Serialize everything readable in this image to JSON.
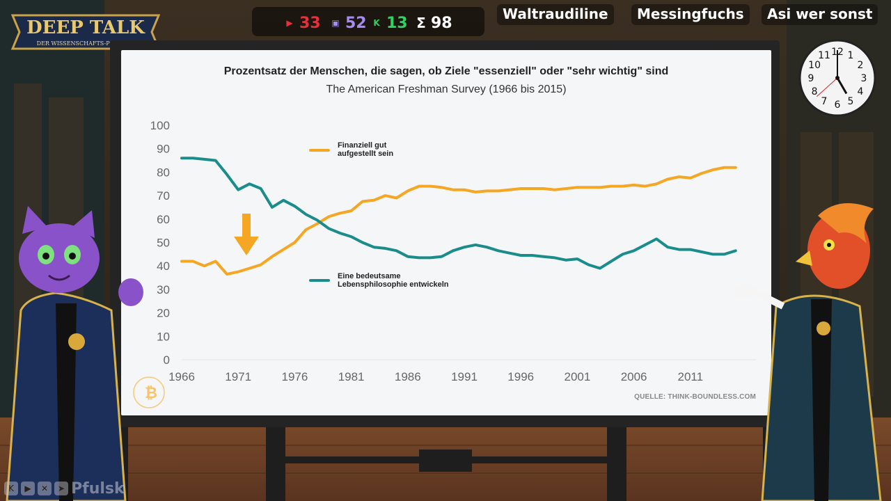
{
  "stream": {
    "logo_title": "DEEP TALK",
    "logo_subtitle": "DER WISSENSCHAFTS-PODCAST",
    "counters": [
      {
        "platform": "youtube",
        "icon": "youtube-icon",
        "value": "33",
        "color": "#e8303a"
      },
      {
        "platform": "twitch",
        "icon": "twitch-icon",
        "value": "52",
        "color": "#a58bf2"
      },
      {
        "platform": "kick",
        "icon": "kick-icon",
        "value": "13",
        "color": "#2fd160"
      },
      {
        "platform": "total",
        "icon": "sigma-icon",
        "value": "98",
        "color": "#ffffff"
      }
    ],
    "participants": [
      "Waltraudiline",
      "Messingfuchs",
      "Asi wer sonst"
    ],
    "social_handle": "Pfulsk",
    "clock": {
      "hour": 5,
      "minute": 0,
      "second": 38
    }
  },
  "board": {
    "source_text": "QUELLE: THINK-BOUNDLESS.COM"
  },
  "chart_data": {
    "type": "line",
    "title": "Prozentsatz der Menschen, die sagen, ob Ziele \"essenziell\" oder \"sehr wichtig\" sind",
    "subtitle": "The American Freshman Survey (1966 bis 2015)",
    "ylim": [
      0,
      100
    ],
    "yticks": [
      0,
      10,
      20,
      30,
      40,
      50,
      60,
      70,
      80,
      90,
      100
    ],
    "xticks": [
      1966,
      1971,
      1976,
      1981,
      1986,
      1991,
      1996,
      2001,
      2006,
      2011
    ],
    "grid": false,
    "series": [
      {
        "name": "Finanziell gut aufgestellt sein",
        "label_lines": [
          "Finanziell gut",
          "aufgestellt sein"
        ],
        "color": "#f5a623",
        "x": [
          1966,
          1967,
          1968,
          1969,
          1970,
          1971,
          1972,
          1973,
          1974,
          1975,
          1976,
          1977,
          1978,
          1979,
          1980,
          1981,
          1982,
          1983,
          1984,
          1985,
          1986,
          1987,
          1988,
          1989,
          1990,
          1991,
          1992,
          1993,
          1994,
          1995,
          1996,
          1997,
          1998,
          1999,
          2000,
          2001,
          2002,
          2003,
          2004,
          2005,
          2006,
          2007,
          2008,
          2009,
          2010,
          2011,
          2012,
          2013,
          2014,
          2015
        ],
        "values": [
          42,
          42,
          40,
          42,
          36.5,
          37.5,
          39,
          40.5,
          44,
          47,
          50,
          55.5,
          58,
          61,
          62.5,
          63.5,
          67.5,
          68,
          70,
          69,
          72,
          74,
          74,
          73.5,
          72.5,
          72.5,
          71.5,
          72,
          72,
          72.5,
          73,
          73,
          73,
          72.5,
          73,
          73.5,
          73.5,
          73.5,
          74,
          74,
          74.5,
          74,
          75,
          77,
          78,
          77.5,
          79.5,
          81,
          82,
          82
        ]
      },
      {
        "name": "Eine bedeutsame Lebensphilosophie entwickeln",
        "label_lines": [
          "Eine bedeutsame",
          "Lebensphilosophie entwickeln"
        ],
        "color": "#1a8c8c",
        "x": [
          1966,
          1967,
          1968,
          1969,
          1970,
          1971,
          1972,
          1973,
          1974,
          1975,
          1976,
          1977,
          1978,
          1979,
          1980,
          1981,
          1982,
          1983,
          1984,
          1985,
          1986,
          1987,
          1988,
          1989,
          1990,
          1991,
          1992,
          1993,
          1994,
          1995,
          1996,
          1997,
          1998,
          1999,
          2000,
          2001,
          2002,
          2003,
          2004,
          2005,
          2006,
          2007,
          2008,
          2009,
          2010,
          2011,
          2012,
          2013,
          2014,
          2015
        ],
        "values": [
          86,
          86,
          85.5,
          85,
          79,
          72.5,
          75,
          73,
          65,
          68,
          65.5,
          62,
          59.5,
          56,
          54,
          52.5,
          50,
          48,
          47.5,
          46.5,
          44,
          43.5,
          43.5,
          44,
          46.5,
          48,
          49,
          48,
          46.5,
          45.5,
          44.5,
          44.5,
          44,
          43.5,
          42.5,
          43,
          40.5,
          39,
          42,
          45,
          46.5,
          49,
          51.5,
          48,
          47,
          47,
          46,
          45,
          45,
          46.5
        ]
      }
    ]
  }
}
